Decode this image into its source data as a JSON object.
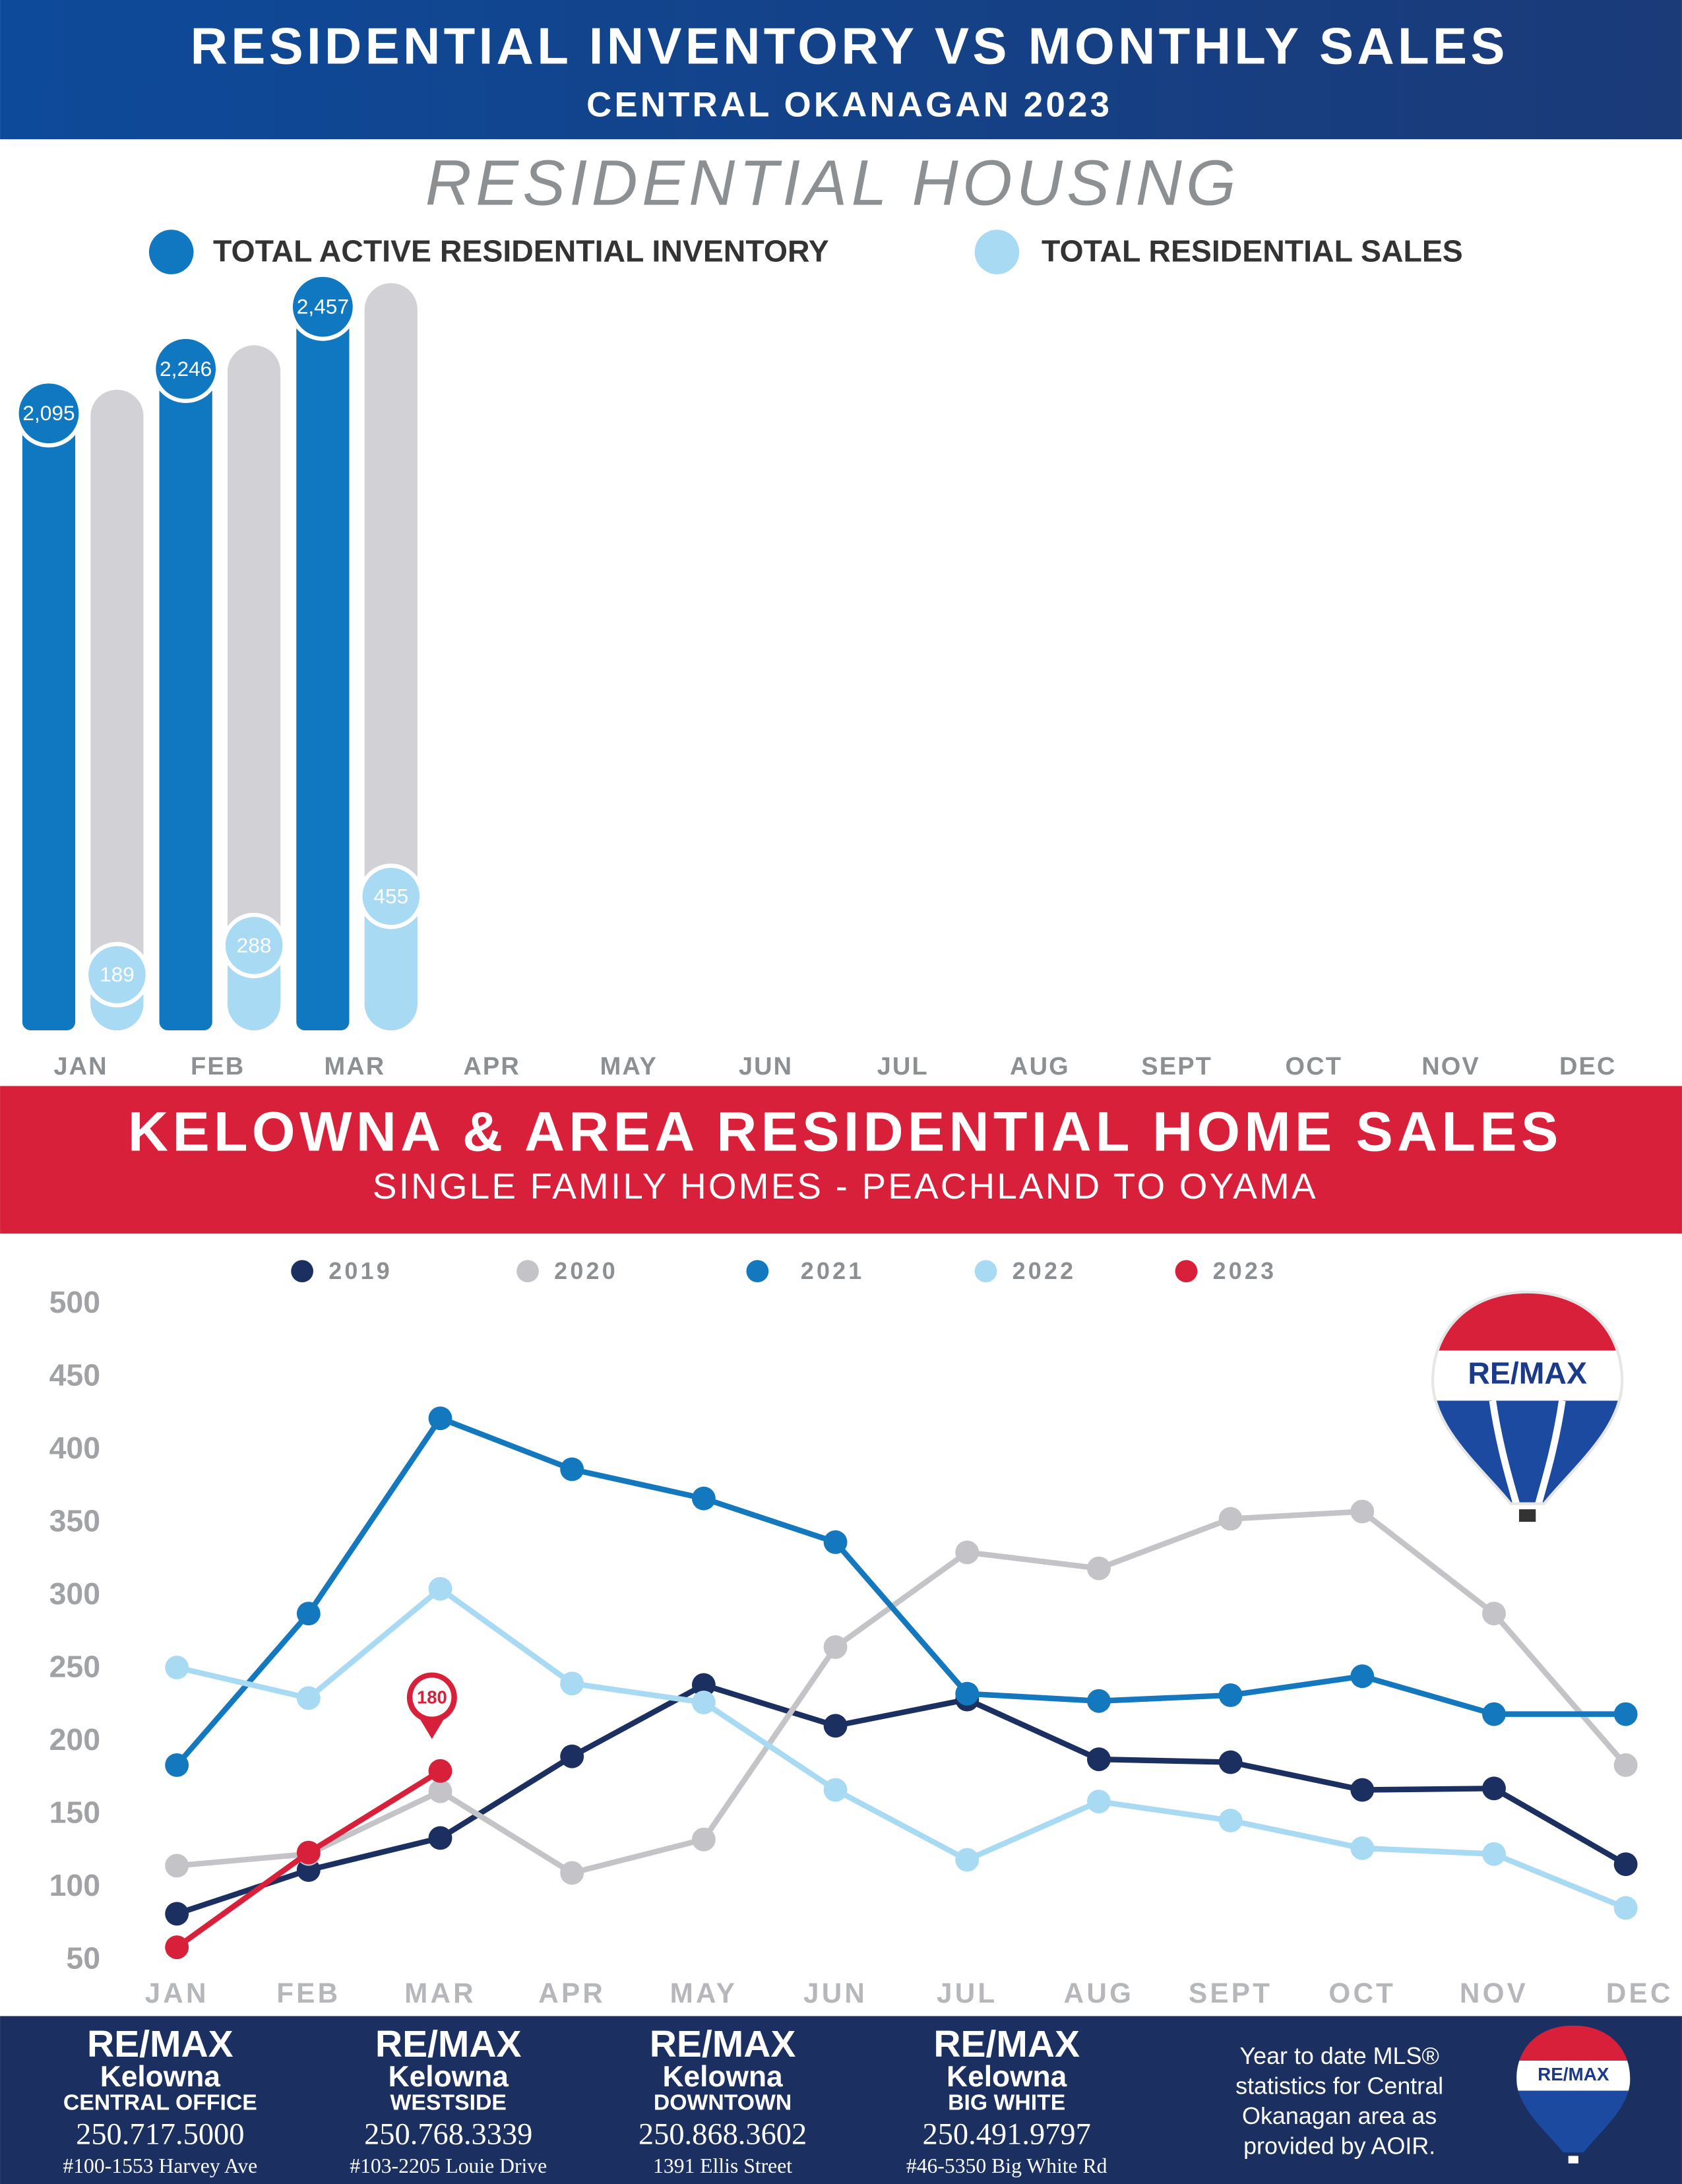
{
  "header": {
    "title": "RESIDENTIAL INVENTORY VS MONTHLY SALES",
    "subtitle": "CENTRAL OKANAGAN 2023"
  },
  "logo_text": "RE/MAX",
  "chart_data": [
    {
      "type": "bar",
      "title": "RESIDENTIAL HOUSING",
      "categories": [
        "JAN",
        "FEB",
        "MAR",
        "APR",
        "MAY",
        "JUN",
        "JUL",
        "AUG",
        "SEPT",
        "OCT",
        "NOV",
        "DEC"
      ],
      "series": [
        {
          "name": "TOTAL ACTIVE RESIDENTIAL INVENTORY",
          "color": "#0f78c0",
          "values": [
            2095,
            2246,
            2457,
            null,
            null,
            null,
            null,
            null,
            null,
            null,
            null,
            null
          ],
          "value_labels": [
            "2,095",
            "2,246",
            "2,457",
            null,
            null,
            null,
            null,
            null,
            null,
            null,
            null,
            null
          ]
        },
        {
          "name": "TOTAL RESIDENTIAL SALES",
          "color": "#a9daf4",
          "values": [
            189,
            288,
            455,
            null,
            null,
            null,
            null,
            null,
            null,
            null,
            null,
            null
          ]
        }
      ]
    },
    {
      "type": "line",
      "title": "KELOWNA & AREA RESIDENTIAL HOME SALES",
      "subtitle": "SINGLE FAMILY HOMES - PEACHLAND TO OYAMA",
      "categories": [
        "JAN",
        "FEB",
        "MAR",
        "APR",
        "MAY",
        "JUN",
        "JUL",
        "AUG",
        "SEPT",
        "OCT",
        "NOV",
        "DEC"
      ],
      "ylim": [
        50,
        500
      ],
      "yticks": [
        50,
        100,
        150,
        200,
        250,
        300,
        350,
        400,
        450,
        500
      ],
      "series": [
        {
          "name": "2019",
          "color": "#1b3060",
          "values": [
            82,
            112,
            134,
            190,
            239,
            211,
            229,
            188,
            186,
            167,
            168,
            116
          ]
        },
        {
          "name": "2020",
          "color": "#c4c4c8",
          "values": [
            115,
            123,
            166,
            110,
            133,
            265,
            330,
            319,
            353,
            358,
            288,
            184
          ]
        },
        {
          "name": "2021",
          "color": "#1478be",
          "values": [
            184,
            288,
            422,
            387,
            367,
            337,
            233,
            228,
            232,
            245,
            219,
            219
          ]
        },
        {
          "name": "2022",
          "color": "#a9daf4",
          "values": [
            251,
            230,
            305,
            240,
            227,
            167,
            119,
            159,
            146,
            127,
            123,
            86
          ]
        },
        {
          "name": "2023",
          "color": "#d9203a",
          "values": [
            59,
            124,
            180,
            null,
            null,
            null,
            null,
            null,
            null,
            null,
            null,
            null
          ],
          "value_labels": [
            null,
            null,
            "180",
            null,
            null,
            null,
            null,
            null,
            null,
            null,
            null,
            null
          ]
        }
      ]
    }
  ],
  "footer": {
    "offices": [
      {
        "brand": "RE/MAX",
        "city": "Kelowna",
        "branch": "CENTRAL OFFICE",
        "phone": "250.717.5000",
        "address": "#100-1553 Harvey Ave"
      },
      {
        "brand": "RE/MAX",
        "city": "Kelowna",
        "branch": "WESTSIDE",
        "phone": "250.768.3339",
        "address": "#103-2205 Louie Drive"
      },
      {
        "brand": "RE/MAX",
        "city": "Kelowna",
        "branch": "DOWNTOWN",
        "phone": "250.868.3602",
        "address": "1391 Ellis Street"
      },
      {
        "brand": "RE/MAX",
        "city": "Kelowna",
        "branch": "BIG WHITE",
        "phone": "250.491.9797",
        "address": "#46-5350 Big White Rd"
      }
    ],
    "note": [
      "Year to date MLS®",
      "statistics for Central",
      "Okanagan area as",
      "provided by AOIR."
    ]
  }
}
